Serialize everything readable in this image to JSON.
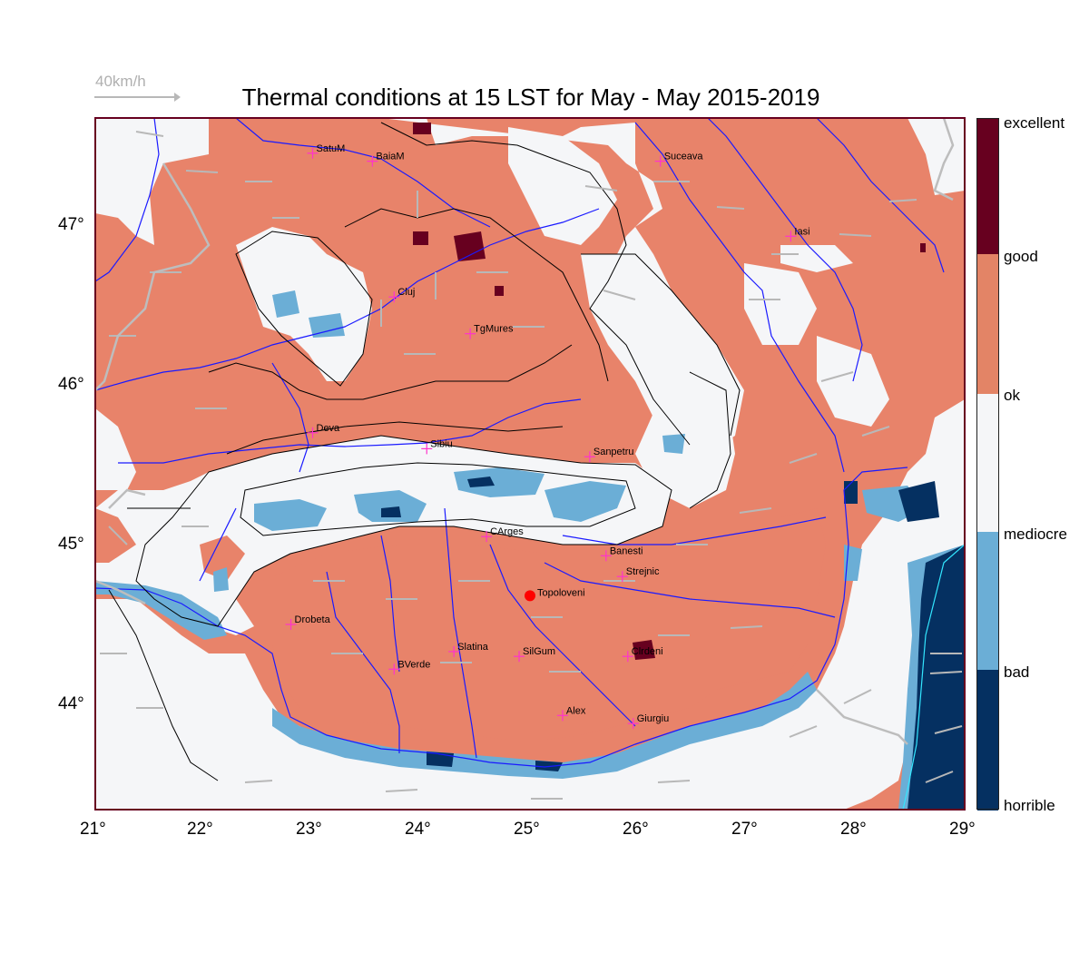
{
  "title": "Thermal conditions at 15 LST for May - May  2015-2019",
  "wind_scale": {
    "label": "40km/h"
  },
  "colors": {
    "horrible": "#053061",
    "bad": "#6BAED6",
    "mediocre": "#F5F6F8",
    "ok": "#E8836A",
    "good": "#E38466",
    "excellent": "#67001F",
    "river": "#1a1aff",
    "border": "#b5b5b5",
    "arrow": "#b8b8b8",
    "city_marker": "#ff33cc",
    "topoloveni": "#ff0000"
  },
  "colorbar": {
    "labels": [
      "excellent",
      "good",
      "ok",
      "mediocre",
      "bad",
      "horrible"
    ]
  },
  "axes": {
    "x_ticks": [
      "21°",
      "22°",
      "23°",
      "24°",
      "25°",
      "26°",
      "27°",
      "28°",
      "29°"
    ],
    "y_ticks": [
      "47°",
      "46°",
      "45°",
      "44°"
    ]
  },
  "cities": [
    {
      "name": "SatuM",
      "lon": 23.0,
      "lat": 47.45
    },
    {
      "name": "BaiaM",
      "lon": 23.55,
      "lat": 47.4
    },
    {
      "name": "Suceava",
      "lon": 26.2,
      "lat": 47.4
    },
    {
      "name": "Iasi",
      "lon": 27.4,
      "lat": 46.93
    },
    {
      "name": "Cluj",
      "lon": 23.75,
      "lat": 46.55
    },
    {
      "name": "TgMures",
      "lon": 24.45,
      "lat": 46.32
    },
    {
      "name": "Deva",
      "lon": 23.0,
      "lat": 45.7
    },
    {
      "name": "Sibiu",
      "lon": 24.05,
      "lat": 45.6
    },
    {
      "name": "Sanpetru",
      "lon": 25.55,
      "lat": 45.55
    },
    {
      "name": "CArges",
      "lon": 24.6,
      "lat": 45.05
    },
    {
      "name": "Banesti",
      "lon": 25.7,
      "lat": 44.93
    },
    {
      "name": "Strejnic",
      "lon": 25.85,
      "lat": 44.8
    },
    {
      "name": "Drobeta",
      "lon": 22.8,
      "lat": 44.5
    },
    {
      "name": "Slatina",
      "lon": 24.3,
      "lat": 44.33
    },
    {
      "name": "SilGum",
      "lon": 24.9,
      "lat": 44.3
    },
    {
      "name": "Clrdeni",
      "lon": 25.9,
      "lat": 44.3
    },
    {
      "name": "BVerde",
      "lon": 23.75,
      "lat": 44.22
    },
    {
      "name": "Alex",
      "lon": 25.3,
      "lat": 43.93
    },
    {
      "name": "Giurgiu",
      "lon": 25.95,
      "lat": 43.88
    }
  ],
  "highlight": {
    "name": "Topoloveni",
    "lon": 25.0,
    "lat": 44.68
  }
}
